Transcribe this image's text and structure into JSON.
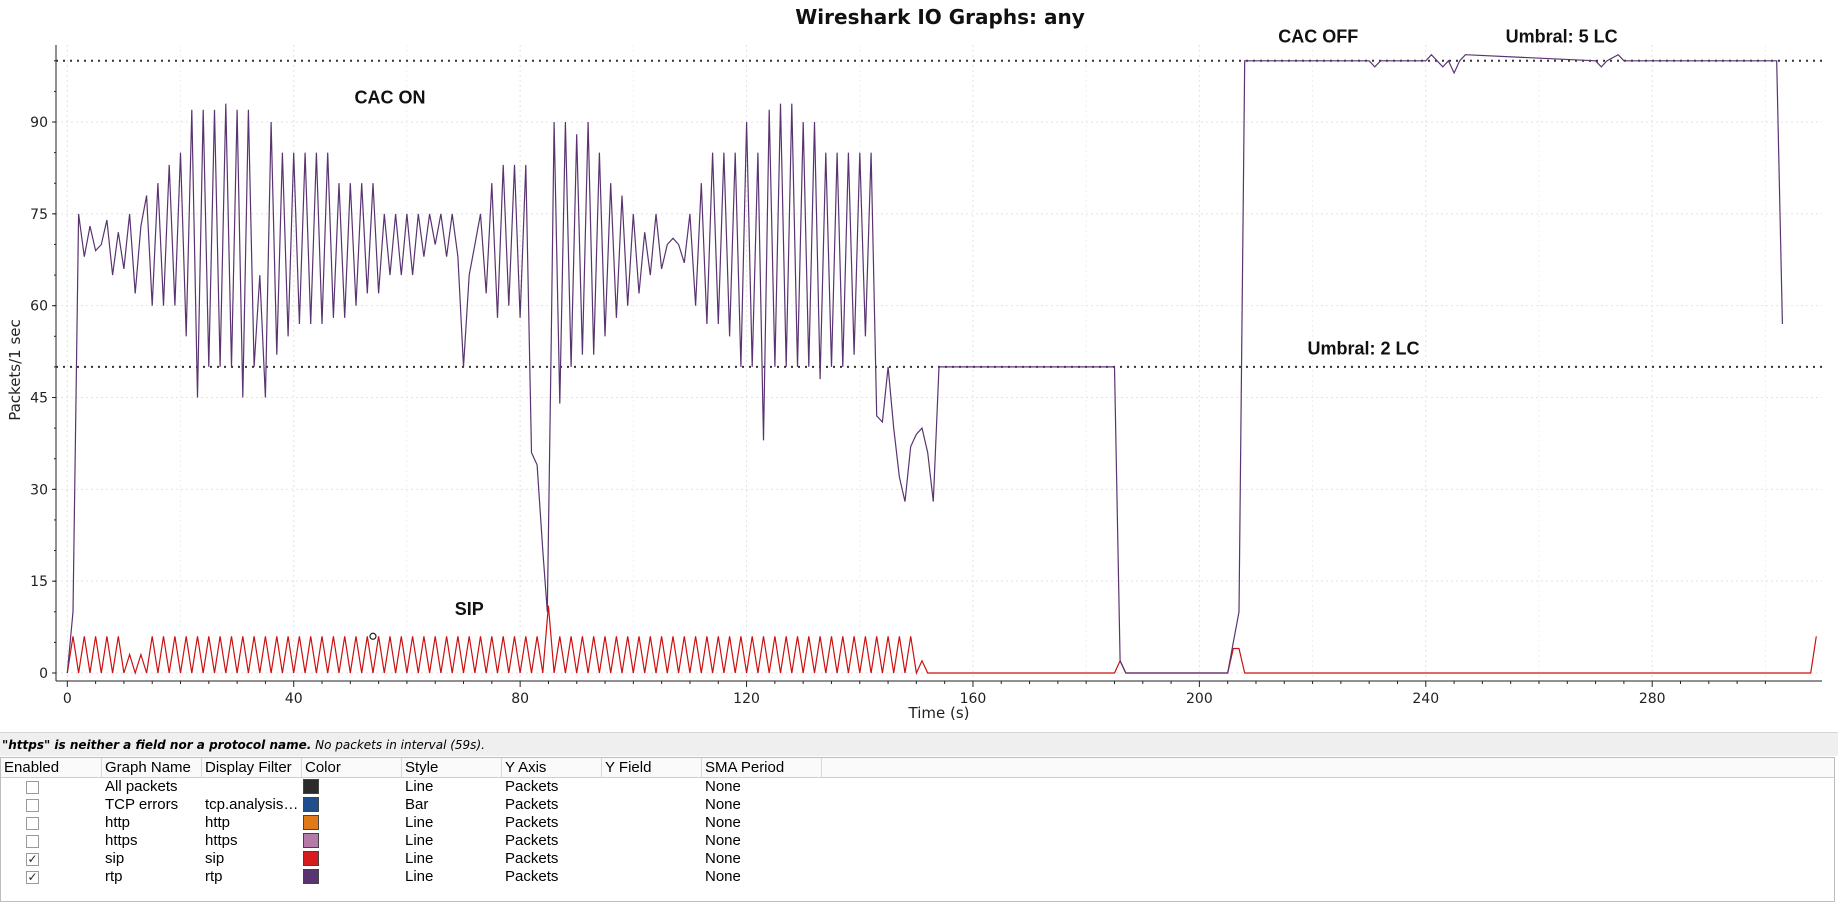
{
  "chart_data": {
    "type": "line",
    "title": "Wireshark IO Graphs: any",
    "xlabel": "Time (s)",
    "ylabel": "Packets/1 sec",
    "xlim": [
      -2,
      310
    ],
    "ylim": [
      -2,
      102
    ],
    "xticks": [
      0,
      40,
      80,
      120,
      160,
      200,
      240,
      280
    ],
    "yticks": [
      0,
      15,
      30,
      45,
      60,
      75,
      90
    ],
    "grid": true,
    "hlines": [
      {
        "y": 50,
        "style": "dotted"
      },
      {
        "y": 100,
        "style": "dotted"
      }
    ],
    "annotations": [
      {
        "text": "CAC ON",
        "x": 57,
        "y": 93
      },
      {
        "text": "CAC OFF",
        "x": 221,
        "y": 103
      },
      {
        "text": "Umbral: 5 LC",
        "x": 264,
        "y": 103
      },
      {
        "text": "Umbral: 2 LC",
        "x": 229,
        "y": 52
      },
      {
        "text": "SIP",
        "x": 71,
        "y": 9.5
      }
    ],
    "series": [
      {
        "name": "rtp",
        "color": "#5a3470",
        "points": [
          [
            0,
            0
          ],
          [
            1,
            10
          ],
          [
            2,
            75
          ],
          [
            3,
            68
          ],
          [
            4,
            73
          ],
          [
            5,
            69
          ],
          [
            6,
            70
          ],
          [
            7,
            74
          ],
          [
            8,
            65
          ],
          [
            9,
            72
          ],
          [
            10,
            66
          ],
          [
            11,
            75
          ],
          [
            12,
            62
          ],
          [
            13,
            73
          ],
          [
            14,
            78
          ],
          [
            15,
            60
          ],
          [
            16,
            80
          ],
          [
            17,
            60
          ],
          [
            18,
            83
          ],
          [
            19,
            60
          ],
          [
            20,
            85
          ],
          [
            21,
            55
          ],
          [
            22,
            92
          ],
          [
            23,
            45
          ],
          [
            24,
            92
          ],
          [
            25,
            50
          ],
          [
            26,
            92
          ],
          [
            27,
            50
          ],
          [
            28,
            93
          ],
          [
            29,
            50
          ],
          [
            30,
            92
          ],
          [
            31,
            45
          ],
          [
            32,
            92
          ],
          [
            33,
            50
          ],
          [
            34,
            65
          ],
          [
            35,
            45
          ],
          [
            36,
            90
          ],
          [
            37,
            52
          ],
          [
            38,
            85
          ],
          [
            39,
            55
          ],
          [
            40,
            85
          ],
          [
            41,
            57
          ],
          [
            42,
            85
          ],
          [
            43,
            57
          ],
          [
            44,
            85
          ],
          [
            45,
            57
          ],
          [
            46,
            85
          ],
          [
            47,
            58
          ],
          [
            48,
            80
          ],
          [
            49,
            58
          ],
          [
            50,
            80
          ],
          [
            51,
            60
          ],
          [
            52,
            80
          ],
          [
            53,
            62
          ],
          [
            54,
            80
          ],
          [
            55,
            62
          ],
          [
            56,
            75
          ],
          [
            57,
            65
          ],
          [
            58,
            75
          ],
          [
            59,
            65
          ],
          [
            60,
            75
          ],
          [
            61,
            65
          ],
          [
            62,
            75
          ],
          [
            63,
            68
          ],
          [
            64,
            75
          ],
          [
            65,
            70
          ],
          [
            66,
            75
          ],
          [
            67,
            68
          ],
          [
            68,
            75
          ],
          [
            69,
            68
          ],
          [
            70,
            50
          ],
          [
            71,
            65
          ],
          [
            72,
            70
          ],
          [
            73,
            75
          ],
          [
            74,
            62
          ],
          [
            75,
            80
          ],
          [
            76,
            58
          ],
          [
            77,
            83
          ],
          [
            78,
            60
          ],
          [
            79,
            83
          ],
          [
            80,
            58
          ],
          [
            81,
            83
          ],
          [
            82,
            36
          ],
          [
            83,
            34
          ],
          [
            84,
            20
          ],
          [
            84.8,
            10
          ],
          [
            85.5,
            55
          ],
          [
            86,
            90
          ],
          [
            87,
            44
          ],
          [
            88,
            90
          ],
          [
            89,
            50
          ],
          [
            90,
            88
          ],
          [
            91,
            52
          ],
          [
            92,
            90
          ],
          [
            93,
            52
          ],
          [
            94,
            85
          ],
          [
            95,
            55
          ],
          [
            96,
            80
          ],
          [
            97,
            58
          ],
          [
            98,
            78
          ],
          [
            99,
            60
          ],
          [
            100,
            75
          ],
          [
            101,
            62
          ],
          [
            102,
            72
          ],
          [
            103,
            65
          ],
          [
            104,
            75
          ],
          [
            105,
            66
          ],
          [
            106,
            70
          ],
          [
            107,
            71
          ],
          [
            108,
            70
          ],
          [
            109,
            67
          ],
          [
            110,
            75
          ],
          [
            111,
            60
          ],
          [
            112,
            80
          ],
          [
            113,
            57
          ],
          [
            114,
            85
          ],
          [
            115,
            57
          ],
          [
            116,
            85
          ],
          [
            117,
            55
          ],
          [
            118,
            85
          ],
          [
            119,
            50
          ],
          [
            120,
            90
          ],
          [
            121,
            50
          ],
          [
            122,
            85
          ],
          [
            123,
            38
          ],
          [
            124,
            92
          ],
          [
            125,
            50
          ],
          [
            126,
            93
          ],
          [
            127,
            50
          ],
          [
            128,
            93
          ],
          [
            129,
            50
          ],
          [
            130,
            90
          ],
          [
            131,
            50
          ],
          [
            132,
            90
          ],
          [
            133,
            48
          ],
          [
            134,
            85
          ],
          [
            135,
            50
          ],
          [
            136,
            85
          ],
          [
            137,
            50
          ],
          [
            138,
            85
          ],
          [
            139,
            52
          ],
          [
            140,
            85
          ],
          [
            141,
            55
          ],
          [
            142,
            85
          ],
          [
            143,
            42
          ],
          [
            144,
            41
          ],
          [
            145,
            50
          ],
          [
            146,
            40
          ],
          [
            147,
            32
          ],
          [
            148,
            28
          ],
          [
            149,
            37
          ],
          [
            150,
            39
          ],
          [
            151,
            40
          ],
          [
            152,
            36
          ],
          [
            153,
            28
          ],
          [
            154,
            50
          ],
          [
            185,
            50
          ],
          [
            186,
            2
          ],
          [
            187,
            0
          ],
          [
            205,
            0
          ],
          [
            206,
            5
          ],
          [
            207,
            10
          ],
          [
            208,
            100
          ],
          [
            230,
            100
          ],
          [
            231,
            99
          ],
          [
            232,
            100
          ],
          [
            240,
            100
          ],
          [
            241,
            101
          ],
          [
            242,
            100
          ],
          [
            243,
            99
          ],
          [
            244,
            100
          ],
          [
            245,
            98
          ],
          [
            246,
            100
          ],
          [
            247,
            101
          ],
          [
            270,
            100
          ],
          [
            271,
            99
          ],
          [
            272,
            100
          ],
          [
            274,
            101
          ],
          [
            275,
            100
          ],
          [
            302,
            100
          ],
          [
            303,
            57
          ]
        ]
      },
      {
        "name": "sip",
        "color": "#cc1010",
        "description": "sawtooth 0-6 every 2s until 150s, peak 11 at 85s, bump 4 at 206s, 0 thereafter, 6 at 309s"
      }
    ]
  },
  "status": {
    "error_bold": "\"https\" is neither a field nor a protocol name.",
    "error_rest": " No packets in interval (59s)."
  },
  "table": {
    "headers": [
      "Enabled",
      "Graph Name",
      "Display Filter",
      "Color",
      "Style",
      "Y Axis",
      "Y Field",
      "SMA Period"
    ],
    "rows": [
      {
        "enabled": false,
        "check": "",
        "name": "All packets",
        "filter": "",
        "color": "#2b2b2b",
        "style": "Line",
        "yaxis": "Packets",
        "yfield": "",
        "sma": "None"
      },
      {
        "enabled": false,
        "check": "",
        "name": "TCP errors",
        "filter": "tcp.analysis…",
        "color": "#1f4e8f",
        "style": "Bar",
        "yaxis": "Packets",
        "yfield": "",
        "sma": "None"
      },
      {
        "enabled": false,
        "check": "",
        "name": "http",
        "filter": "http",
        "color": "#e07a16",
        "style": "Line",
        "yaxis": "Packets",
        "yfield": "",
        "sma": "None"
      },
      {
        "enabled": false,
        "check": "",
        "name": "https",
        "filter": "https",
        "color": "#b57aa8",
        "style": "Line",
        "yaxis": "Packets",
        "yfield": "",
        "sma": "None"
      },
      {
        "enabled": true,
        "check": "✓",
        "name": "sip",
        "filter": "sip",
        "color": "#d61c1c",
        "style": "Line",
        "yaxis": "Packets",
        "yfield": "",
        "sma": "None"
      },
      {
        "enabled": true,
        "check": "✓",
        "name": "rtp",
        "filter": "rtp",
        "color": "#5a3470",
        "style": "Line",
        "yaxis": "Packets",
        "yfield": "",
        "sma": "None"
      }
    ]
  }
}
